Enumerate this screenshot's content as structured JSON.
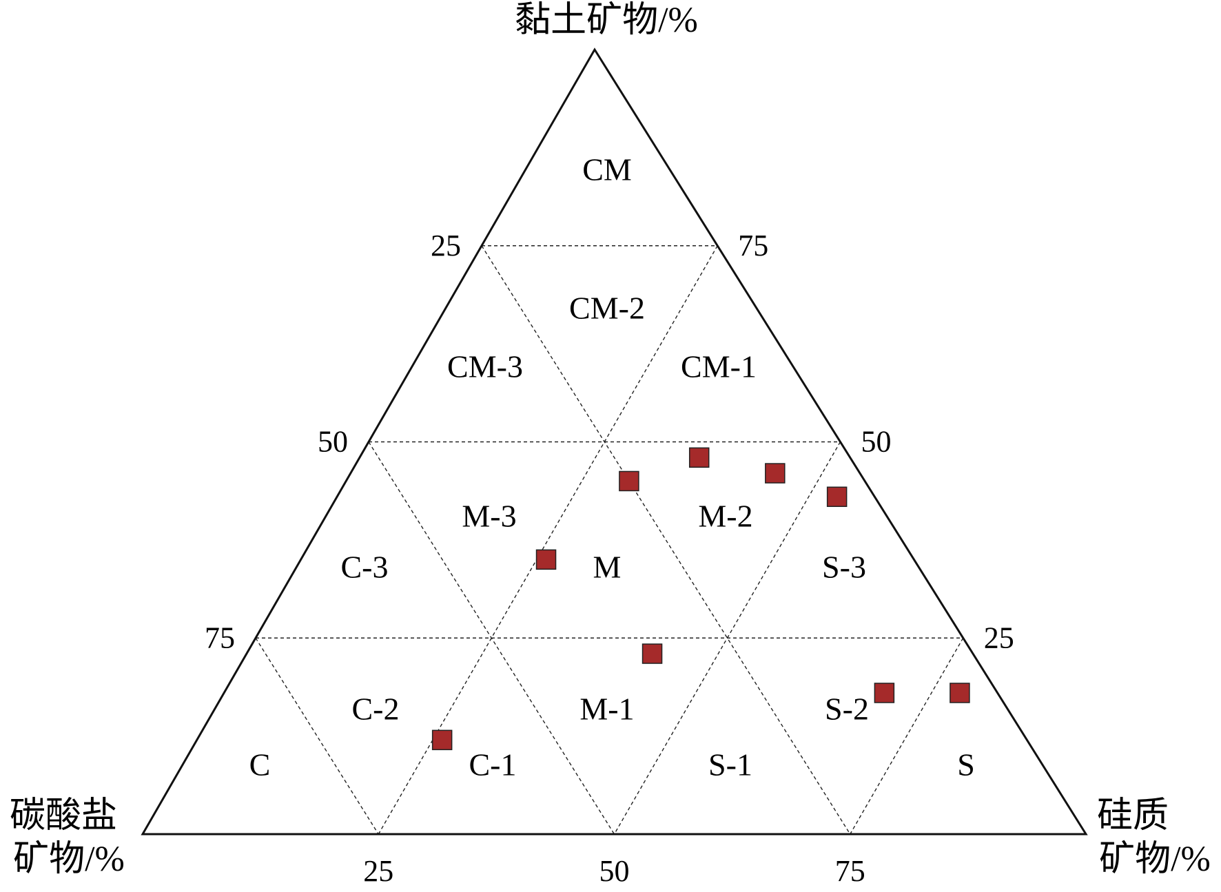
{
  "chart_data": {
    "type": "ternary",
    "top_axis_label": "黏土矿物/%",
    "left_axis_label": [
      "碳酸盐",
      "矿物/%"
    ],
    "right_axis_label": [
      "硅质",
      "矿物/%"
    ],
    "clay_ticks": [
      25,
      50,
      75
    ],
    "carbonate_ticks": [
      25,
      50,
      75
    ],
    "silica_ticks": [
      25,
      50,
      75
    ],
    "grid": true,
    "annotations": [
      "CM",
      "CM-2",
      "CM-3",
      "CM-1",
      "M-3",
      "M-2",
      "C-3",
      "M",
      "S-3",
      "C-2",
      "M-1",
      "S-2",
      "C",
      "C-1",
      "S-1",
      "S"
    ],
    "series": [
      {
        "color": "#a52a2a",
        "clay": [
          48,
          46,
          43,
          45,
          35,
          23,
          18,
          18,
          12
        ],
        "carbonate": [
          16,
          9,
          4,
          25,
          39,
          34,
          12,
          4,
          62
        ],
        "silica": [
          36,
          45,
          53,
          30,
          26,
          43,
          70,
          78,
          26
        ]
      }
    ]
  }
}
